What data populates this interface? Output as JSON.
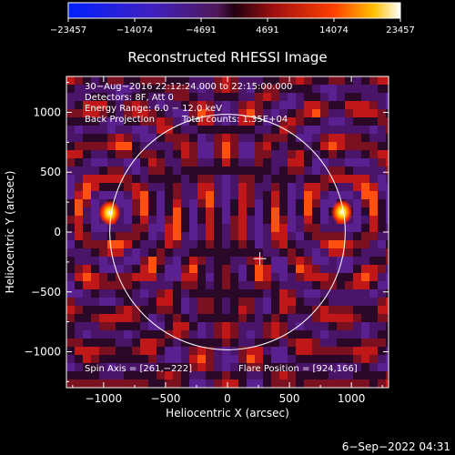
{
  "chart_data": {
    "type": "heatmap",
    "title": "Reconstructed RHESSI Image",
    "xlabel": "Heliocentric X (arcsec)",
    "ylabel": "Heliocentric Y (arcsec)",
    "xlim": [
      -1300,
      1300
    ],
    "ylim": [
      -1300,
      1300
    ],
    "x_ticks": [
      -1000,
      -500,
      0,
      500,
      1000
    ],
    "y_ticks": [
      -1000,
      -500,
      0,
      500,
      1000
    ],
    "x_tick_labels": [
      "−1000",
      "−500",
      "0",
      "500",
      "1000"
    ],
    "y_tick_labels": [
      "−1000",
      "−500",
      "0",
      "500",
      "1000"
    ],
    "colorbar": {
      "min": -23457,
      "max": 23457,
      "ticks": [
        -23457,
        -14074,
        -4691,
        4691,
        14074,
        23457
      ],
      "tick_labels": [
        "−23457",
        "−14074",
        "−4691",
        "4691",
        "14074",
        "23457"
      ]
    },
    "annotations": [
      "30−Aug−2016 22:12:24.000 to 22:15:00.000",
      "Detectors: 8F, Att 0",
      "Energy Range: 6.0 − 12.0 keV",
      "Back Projection",
      "Total counts: 1.35E+04"
    ],
    "spin_axis": "Spin Axis = [261,−222]",
    "flare_position": "Flare Position = [924,166]",
    "solar_disk": {
      "center": [
        0,
        0
      ],
      "radius": 950
    },
    "spin_axis_marker": [
      261,
      -222
    ],
    "bright_sources": [
      {
        "x": -950,
        "y": 160,
        "value": 23457
      },
      {
        "x": 924,
        "y": 166,
        "value": 23457
      }
    ]
  },
  "footer": {
    "date": "6−Sep−2022 04:31"
  }
}
